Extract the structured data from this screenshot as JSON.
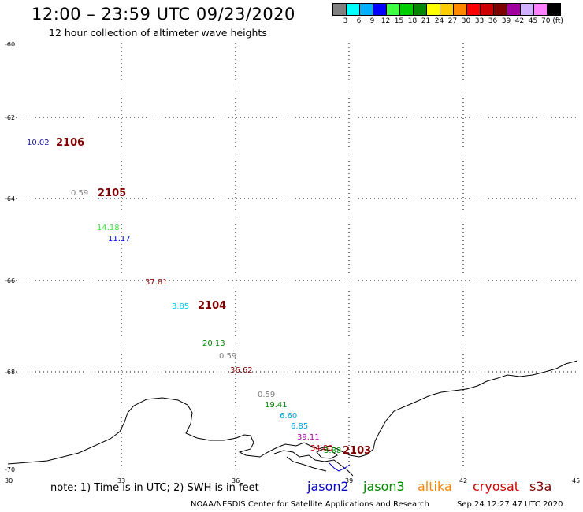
{
  "header": {
    "title": "12:00 – 23:59 UTC 09/23/2020",
    "subtitle": "12 hour collection of altimeter wave heights"
  },
  "colorbar": {
    "colors": [
      "#808080",
      "#00ffff",
      "#00b0ff",
      "#0000ff",
      "#40ff40",
      "#00cc00",
      "#008800",
      "#ffff00",
      "#ffcc00",
      "#ff8800",
      "#ff0000",
      "#cc0000",
      "#800000",
      "#a000a0",
      "#d0b0ff",
      "#ff80ff",
      "#000000"
    ],
    "labels": [
      "3",
      "6",
      "9",
      "12",
      "15",
      "18",
      "21",
      "24",
      "27",
      "30",
      "33",
      "36",
      "39",
      "42",
      "45",
      "70 (ft)"
    ]
  },
  "axes": {
    "lat_labels": [
      "-60",
      "-62",
      "-64",
      "-66",
      "-68",
      "-70"
    ],
    "lon_labels": [
      "30",
      "33",
      "36",
      "39",
      "42",
      "45"
    ]
  },
  "wave_heights": [
    {
      "text": "10.02",
      "color": "#1a1ab0"
    },
    {
      "text": "0.59",
      "color": "#808080"
    },
    {
      "text": "14.18",
      "color": "#40e040"
    },
    {
      "text": "11.17",
      "color": "#0000ff"
    },
    {
      "text": "37.81",
      "color": "#800000"
    },
    {
      "text": "3.85",
      "color": "#00d0ff"
    },
    {
      "text": "20.13",
      "color": "#008800"
    },
    {
      "text": "0.59",
      "color": "#808080"
    },
    {
      "text": "36.62",
      "color": "#800000"
    },
    {
      "text": "0.59",
      "color": "#808080"
    },
    {
      "text": "19.41",
      "color": "#008800"
    },
    {
      "text": "6.60",
      "color": "#00a0e0"
    },
    {
      "text": "6.85",
      "color": "#00a0e0"
    },
    {
      "text": "39.11",
      "color": "#a000a0"
    },
    {
      "text": "34.80",
      "color": "#cc0000"
    },
    {
      "text": "3.88",
      "color": "#008800"
    }
  ],
  "track_labels": [
    "2106",
    "2105",
    "2104",
    "2103"
  ],
  "footer": {
    "note": "note: 1) Time is in UTC; 2) SWH is in feet",
    "satellites": [
      {
        "name": "jason2",
        "color": "#0000cc"
      },
      {
        "name": "jason3",
        "color": "#008800"
      },
      {
        "name": "altika",
        "color": "#ff8800"
      },
      {
        "name": "cryosat",
        "color": "#cc0000"
      },
      {
        "name": "s3a",
        "color": "#800000"
      }
    ],
    "credit": "NOAA/NESDIS Center for Satellite Applications and Research",
    "timestamp": "Sep 24 12:27:47 UTC 2020"
  }
}
